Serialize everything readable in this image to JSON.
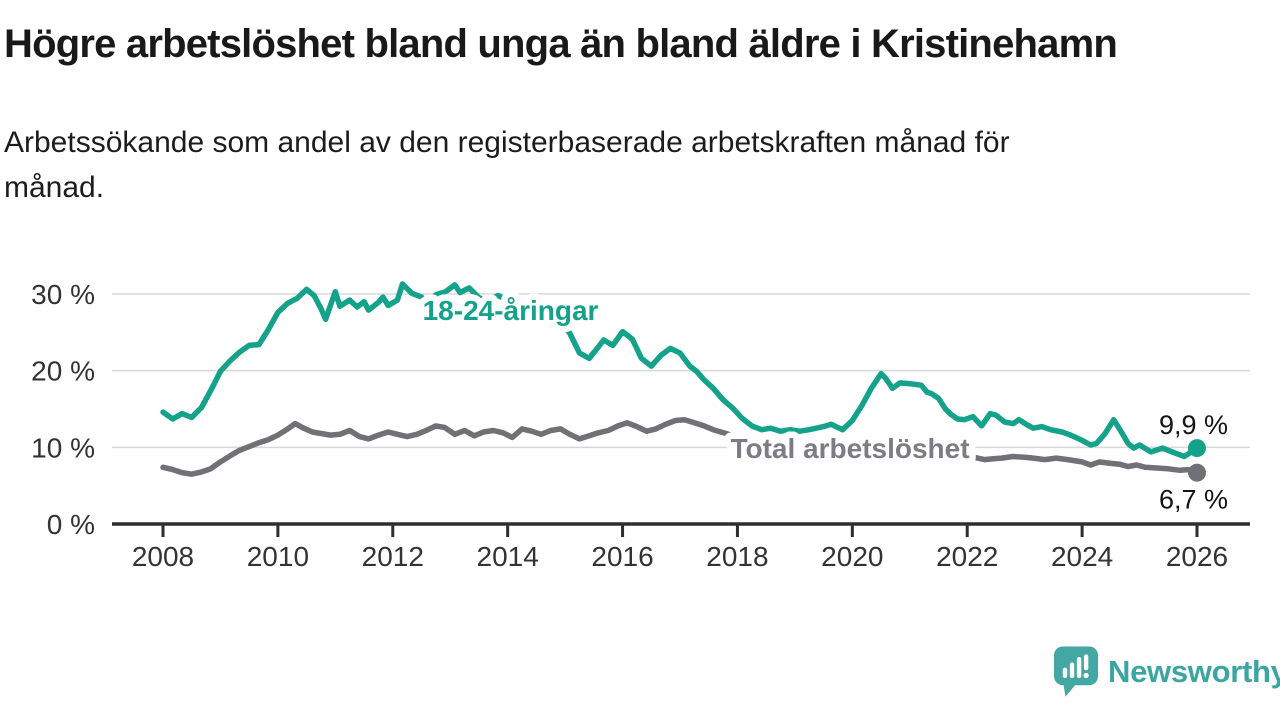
{
  "header": {
    "title": "Högre arbetslöshet bland unga än bland äldre i Kristinehamn",
    "subtitle_lines": [
      "Arbetssökande som andel av den registerbaserade arbetskraften månad för",
      "månad."
    ]
  },
  "branding": {
    "logo_text": "Newsworthy",
    "logo_color": "#3aa6a2",
    "logo_icon": "speech-bubble-bar-chart-icon"
  },
  "chart_data": {
    "type": "line",
    "title": "Högre arbetslöshet bland unga än bland äldre i Kristinehamn",
    "subtitle": "Arbetssökande som andel av den registerbaserade arbetskraften månad för månad.",
    "unit": "%",
    "grid": true,
    "legend_position": "inline-labels",
    "style": {
      "grid_color": "#d8d8d8",
      "axis_color": "#2e2e2e",
      "tick_text_color": "#333333",
      "value_label_color": "#141414",
      "background": "#ffffff"
    },
    "x_axis": {
      "label": "",
      "tick_years": [
        2008,
        2010,
        2012,
        2014,
        2016,
        2018,
        2020,
        2022,
        2024,
        2026
      ],
      "range": [
        2008,
        2026
      ]
    },
    "y_axis": {
      "label": "",
      "ticks": [
        {
          "value": 0,
          "label": "0 %"
        },
        {
          "value": 10,
          "label": "10 %"
        },
        {
          "value": 20,
          "label": "20 %"
        },
        {
          "value": 30,
          "label": "30 %"
        }
      ],
      "range": [
        0,
        33
      ]
    },
    "series": [
      {
        "id": "youth",
        "name": "18-24-åringar",
        "color": "#15a28b",
        "label_color": "#15a28b",
        "label_pos": [
          2014.05,
          26.6
        ],
        "end_label": "9,9 %",
        "end_value": 9.9,
        "value_label_below": false,
        "points": [
          [
            2008.0,
            14.6
          ],
          [
            2008.17,
            13.7
          ],
          [
            2008.33,
            14.4
          ],
          [
            2008.5,
            13.9
          ],
          [
            2008.67,
            15.2
          ],
          [
            2008.83,
            17.4
          ],
          [
            2009.0,
            19.9
          ],
          [
            2009.17,
            21.3
          ],
          [
            2009.33,
            22.4
          ],
          [
            2009.5,
            23.3
          ],
          [
            2009.67,
            23.4
          ],
          [
            2009.83,
            25.3
          ],
          [
            2010.0,
            27.6
          ],
          [
            2010.17,
            28.8
          ],
          [
            2010.33,
            29.4
          ],
          [
            2010.5,
            30.6
          ],
          [
            2010.63,
            29.8
          ],
          [
            2010.75,
            28.1
          ],
          [
            2010.83,
            26.7
          ],
          [
            2010.92,
            28.6
          ],
          [
            2011.0,
            30.3
          ],
          [
            2011.08,
            28.4
          ],
          [
            2011.25,
            29.2
          ],
          [
            2011.38,
            28.3
          ],
          [
            2011.5,
            29.0
          ],
          [
            2011.58,
            27.9
          ],
          [
            2011.75,
            28.9
          ],
          [
            2011.83,
            29.6
          ],
          [
            2011.92,
            28.5
          ],
          [
            2012.08,
            29.2
          ],
          [
            2012.17,
            31.3
          ],
          [
            2012.33,
            30.1
          ],
          [
            2012.5,
            29.6
          ],
          [
            2012.58,
            28.5
          ],
          [
            2012.75,
            29.9
          ],
          [
            2012.92,
            30.3
          ],
          [
            2013.08,
            31.2
          ],
          [
            2013.17,
            30.2
          ],
          [
            2013.33,
            30.8
          ],
          [
            2013.5,
            29.5
          ],
          [
            2013.67,
            29.1
          ],
          [
            2013.83,
            29.8
          ],
          [
            2014.0,
            29.2
          ],
          [
            2014.17,
            28.7
          ],
          [
            2014.33,
            28.3
          ],
          [
            2014.5,
            28.5
          ],
          [
            2014.67,
            27.5
          ],
          [
            2014.83,
            26.6
          ],
          [
            2015.0,
            25.6
          ],
          [
            2015.08,
            24.9
          ],
          [
            2015.25,
            22.3
          ],
          [
            2015.42,
            21.6
          ],
          [
            2015.58,
            23.1
          ],
          [
            2015.67,
            24.0
          ],
          [
            2015.83,
            23.3
          ],
          [
            2016.0,
            25.1
          ],
          [
            2016.17,
            24.1
          ],
          [
            2016.33,
            21.6
          ],
          [
            2016.5,
            20.6
          ],
          [
            2016.67,
            22.0
          ],
          [
            2016.83,
            22.9
          ],
          [
            2017.0,
            22.3
          ],
          [
            2017.17,
            20.6
          ],
          [
            2017.29,
            19.9
          ],
          [
            2017.42,
            18.8
          ],
          [
            2017.58,
            17.7
          ],
          [
            2017.75,
            16.2
          ],
          [
            2017.92,
            15.1
          ],
          [
            2018.08,
            13.8
          ],
          [
            2018.25,
            12.8
          ],
          [
            2018.42,
            12.3
          ],
          [
            2018.58,
            12.5
          ],
          [
            2018.75,
            12.1
          ],
          [
            2018.92,
            12.3
          ],
          [
            2019.08,
            12.1
          ],
          [
            2019.25,
            12.3
          ],
          [
            2019.5,
            12.7
          ],
          [
            2019.63,
            13.0
          ],
          [
            2019.83,
            12.3
          ],
          [
            2020.0,
            13.5
          ],
          [
            2020.17,
            15.5
          ],
          [
            2020.33,
            17.7
          ],
          [
            2020.5,
            19.6
          ],
          [
            2020.58,
            19.0
          ],
          [
            2020.7,
            17.7
          ],
          [
            2020.83,
            18.4
          ],
          [
            2021.0,
            18.3
          ],
          [
            2021.2,
            18.1
          ],
          [
            2021.3,
            17.2
          ],
          [
            2021.38,
            17.0
          ],
          [
            2021.5,
            16.4
          ],
          [
            2021.62,
            15.0
          ],
          [
            2021.7,
            14.4
          ],
          [
            2021.83,
            13.7
          ],
          [
            2021.95,
            13.6
          ],
          [
            2022.1,
            14.0
          ],
          [
            2022.25,
            12.8
          ],
          [
            2022.4,
            14.4
          ],
          [
            2022.5,
            14.2
          ],
          [
            2022.65,
            13.3
          ],
          [
            2022.8,
            13.1
          ],
          [
            2022.9,
            13.6
          ],
          [
            2023.05,
            12.9
          ],
          [
            2023.15,
            12.5
          ],
          [
            2023.3,
            12.7
          ],
          [
            2023.45,
            12.3
          ],
          [
            2023.65,
            12.0
          ],
          [
            2023.8,
            11.6
          ],
          [
            2024.0,
            10.9
          ],
          [
            2024.15,
            10.3
          ],
          [
            2024.25,
            10.5
          ],
          [
            2024.4,
            11.8
          ],
          [
            2024.55,
            13.6
          ],
          [
            2024.7,
            11.8
          ],
          [
            2024.8,
            10.5
          ],
          [
            2024.9,
            9.9
          ],
          [
            2025.0,
            10.3
          ],
          [
            2025.2,
            9.4
          ],
          [
            2025.4,
            9.9
          ],
          [
            2025.6,
            9.3
          ],
          [
            2025.78,
            8.8
          ],
          [
            2026.0,
            9.9
          ]
        ]
      },
      {
        "id": "total",
        "name": "Total arbetslöshet",
        "color": "#707077",
        "label_color": "#7c7c84",
        "label_pos": [
          2019.96,
          8.6
        ],
        "end_label": "6,7 %",
        "end_value": 6.7,
        "value_label_below": true,
        "points": [
          [
            2008.0,
            7.4
          ],
          [
            2008.17,
            7.1
          ],
          [
            2008.33,
            6.7
          ],
          [
            2008.5,
            6.5
          ],
          [
            2008.67,
            6.8
          ],
          [
            2008.83,
            7.2
          ],
          [
            2009.0,
            8.1
          ],
          [
            2009.17,
            8.9
          ],
          [
            2009.33,
            9.6
          ],
          [
            2009.5,
            10.1
          ],
          [
            2009.67,
            10.6
          ],
          [
            2009.83,
            11.0
          ],
          [
            2010.0,
            11.6
          ],
          [
            2010.17,
            12.4
          ],
          [
            2010.3,
            13.1
          ],
          [
            2010.45,
            12.5
          ],
          [
            2010.6,
            12.0
          ],
          [
            2010.75,
            11.8
          ],
          [
            2010.92,
            11.6
          ],
          [
            2011.08,
            11.7
          ],
          [
            2011.25,
            12.2
          ],
          [
            2011.42,
            11.4
          ],
          [
            2011.58,
            11.1
          ],
          [
            2011.75,
            11.6
          ],
          [
            2011.92,
            12.0
          ],
          [
            2012.08,
            11.7
          ],
          [
            2012.25,
            11.4
          ],
          [
            2012.42,
            11.7
          ],
          [
            2012.58,
            12.2
          ],
          [
            2012.75,
            12.8
          ],
          [
            2012.9,
            12.6
          ],
          [
            2013.08,
            11.7
          ],
          [
            2013.25,
            12.2
          ],
          [
            2013.42,
            11.5
          ],
          [
            2013.58,
            12.0
          ],
          [
            2013.75,
            12.2
          ],
          [
            2013.92,
            11.9
          ],
          [
            2014.08,
            11.3
          ],
          [
            2014.25,
            12.4
          ],
          [
            2014.42,
            12.1
          ],
          [
            2014.58,
            11.7
          ],
          [
            2014.75,
            12.2
          ],
          [
            2014.92,
            12.4
          ],
          [
            2015.08,
            11.7
          ],
          [
            2015.25,
            11.1
          ],
          [
            2015.42,
            11.5
          ],
          [
            2015.58,
            11.9
          ],
          [
            2015.75,
            12.2
          ],
          [
            2015.92,
            12.8
          ],
          [
            2016.08,
            13.2
          ],
          [
            2016.25,
            12.7
          ],
          [
            2016.42,
            12.1
          ],
          [
            2016.58,
            12.4
          ],
          [
            2016.75,
            13.0
          ],
          [
            2016.92,
            13.5
          ],
          [
            2017.08,
            13.6
          ],
          [
            2017.25,
            13.2
          ],
          [
            2017.42,
            12.8
          ],
          [
            2017.58,
            12.3
          ],
          [
            2017.8,
            11.8
          ],
          [
            2018.0,
            11.3
          ],
          [
            2018.33,
            10.7
          ],
          [
            2018.67,
            10.3
          ],
          [
            2019.0,
            10.0
          ],
          [
            2019.33,
            9.8
          ],
          [
            2019.67,
            9.7
          ],
          [
            2020.0,
            9.9
          ],
          [
            2020.33,
            10.4
          ],
          [
            2020.67,
            10.6
          ],
          [
            2021.0,
            10.4
          ],
          [
            2021.33,
            10.0
          ],
          [
            2021.67,
            9.5
          ],
          [
            2022.0,
            8.9
          ],
          [
            2022.3,
            8.4
          ],
          [
            2022.45,
            8.5
          ],
          [
            2022.6,
            8.6
          ],
          [
            2022.8,
            8.8
          ],
          [
            2023.0,
            8.7
          ],
          [
            2023.15,
            8.6
          ],
          [
            2023.35,
            8.4
          ],
          [
            2023.55,
            8.6
          ],
          [
            2023.75,
            8.4
          ],
          [
            2024.0,
            8.1
          ],
          [
            2024.15,
            7.7
          ],
          [
            2024.3,
            8.1
          ],
          [
            2024.5,
            7.9
          ],
          [
            2024.65,
            7.8
          ],
          [
            2024.8,
            7.5
          ],
          [
            2024.95,
            7.7
          ],
          [
            2025.1,
            7.4
          ],
          [
            2025.3,
            7.3
          ],
          [
            2025.5,
            7.2
          ],
          [
            2025.7,
            7.0
          ],
          [
            2025.85,
            7.1
          ],
          [
            2026.0,
            6.7
          ]
        ]
      }
    ]
  }
}
